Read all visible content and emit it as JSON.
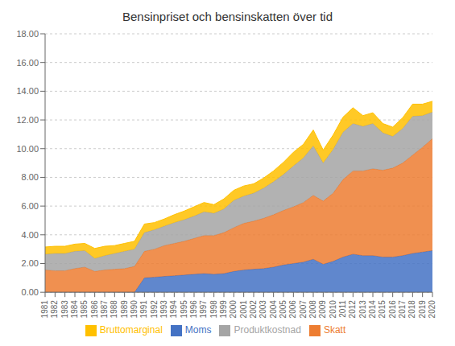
{
  "chart_data": {
    "type": "area",
    "title": "Bensinpriset och bensinskatten över tid",
    "stacked": true,
    "x": [
      1981,
      1982,
      1983,
      1984,
      1985,
      1986,
      1987,
      1988,
      1989,
      1990,
      1991,
      1992,
      1993,
      1994,
      1995,
      1996,
      1997,
      1998,
      1999,
      2000,
      2001,
      2002,
      2003,
      2004,
      2005,
      2006,
      2007,
      2008,
      2009,
      2010,
      2011,
      2012,
      2013,
      2014,
      2015,
      2016,
      2017,
      2018,
      2019,
      2020
    ],
    "series": [
      {
        "name": "Moms",
        "color": "#4472C4",
        "values": [
          0.0,
          0.0,
          0.0,
          0.0,
          0.0,
          0.0,
          0.0,
          0.0,
          0.0,
          0.0,
          1.0,
          1.05,
          1.1,
          1.15,
          1.2,
          1.25,
          1.3,
          1.25,
          1.3,
          1.45,
          1.55,
          1.6,
          1.65,
          1.75,
          1.9,
          2.0,
          2.1,
          2.3,
          1.95,
          2.15,
          2.45,
          2.65,
          2.55,
          2.55,
          2.45,
          2.45,
          2.55,
          2.7,
          2.8,
          2.9
        ]
      },
      {
        "name": "Skatt",
        "color": "#ED7D31",
        "values": [
          1.55,
          1.5,
          1.5,
          1.65,
          1.75,
          1.45,
          1.55,
          1.6,
          1.65,
          1.8,
          1.85,
          1.95,
          2.15,
          2.25,
          2.35,
          2.5,
          2.65,
          2.7,
          2.85,
          3.05,
          3.25,
          3.35,
          3.5,
          3.65,
          3.8,
          3.95,
          4.15,
          4.45,
          4.4,
          4.75,
          5.4,
          5.8,
          5.9,
          6.05,
          6.05,
          6.2,
          6.45,
          6.85,
          7.3,
          7.8
        ]
      },
      {
        "name": "Produktkostnad",
        "color": "#A5A5A5",
        "values": [
          1.1,
          1.2,
          1.2,
          1.2,
          1.15,
          0.9,
          1.0,
          1.1,
          1.2,
          1.2,
          1.3,
          1.35,
          1.35,
          1.45,
          1.5,
          1.55,
          1.65,
          1.55,
          1.65,
          1.9,
          1.9,
          1.95,
          2.1,
          2.3,
          2.5,
          2.85,
          3.1,
          3.45,
          2.65,
          3.05,
          3.3,
          3.3,
          3.1,
          3.15,
          2.6,
          2.2,
          2.4,
          2.7,
          2.2,
          1.85
        ]
      },
      {
        "name": "Bruttomarginal",
        "color": "#FFC000",
        "values": [
          0.5,
          0.5,
          0.5,
          0.5,
          0.5,
          0.7,
          0.65,
          0.55,
          0.55,
          0.55,
          0.6,
          0.5,
          0.5,
          0.55,
          0.6,
          0.65,
          0.65,
          0.6,
          0.7,
          0.7,
          0.7,
          0.65,
          0.7,
          0.75,
          0.85,
          0.95,
          0.95,
          1.1,
          0.9,
          1.0,
          1.05,
          1.1,
          0.75,
          0.75,
          0.65,
          0.65,
          0.75,
          0.85,
          0.8,
          0.75
        ]
      }
    ],
    "xlim": [
      1981,
      2020
    ],
    "xticks": [
      1981,
      1982,
      1983,
      1984,
      1985,
      1986,
      1987,
      1988,
      1989,
      1990,
      1991,
      1992,
      1993,
      1994,
      1995,
      1996,
      1997,
      1998,
      1999,
      2000,
      2001,
      2002,
      2003,
      2004,
      2005,
      2006,
      2007,
      2008,
      2009,
      2010,
      2011,
      2012,
      2013,
      2014,
      2015,
      2016,
      2017,
      2018,
      2019,
      2020
    ],
    "ylim": [
      0,
      18
    ],
    "yticks": [
      {
        "value": 0,
        "label": "0.00"
      },
      {
        "value": 2,
        "label": "2.00"
      },
      {
        "value": 4,
        "label": "4.00"
      },
      {
        "value": 6,
        "label": "6.00"
      },
      {
        "value": 8,
        "label": "8.00"
      },
      {
        "value": 10,
        "label": "10.00"
      },
      {
        "value": 12,
        "label": "12.00"
      },
      {
        "value": 14,
        "label": "14.00"
      },
      {
        "value": 16,
        "label": "16.00"
      },
      {
        "value": 18,
        "label": "18.00"
      }
    ],
    "grid": true,
    "legend": "bottom"
  }
}
